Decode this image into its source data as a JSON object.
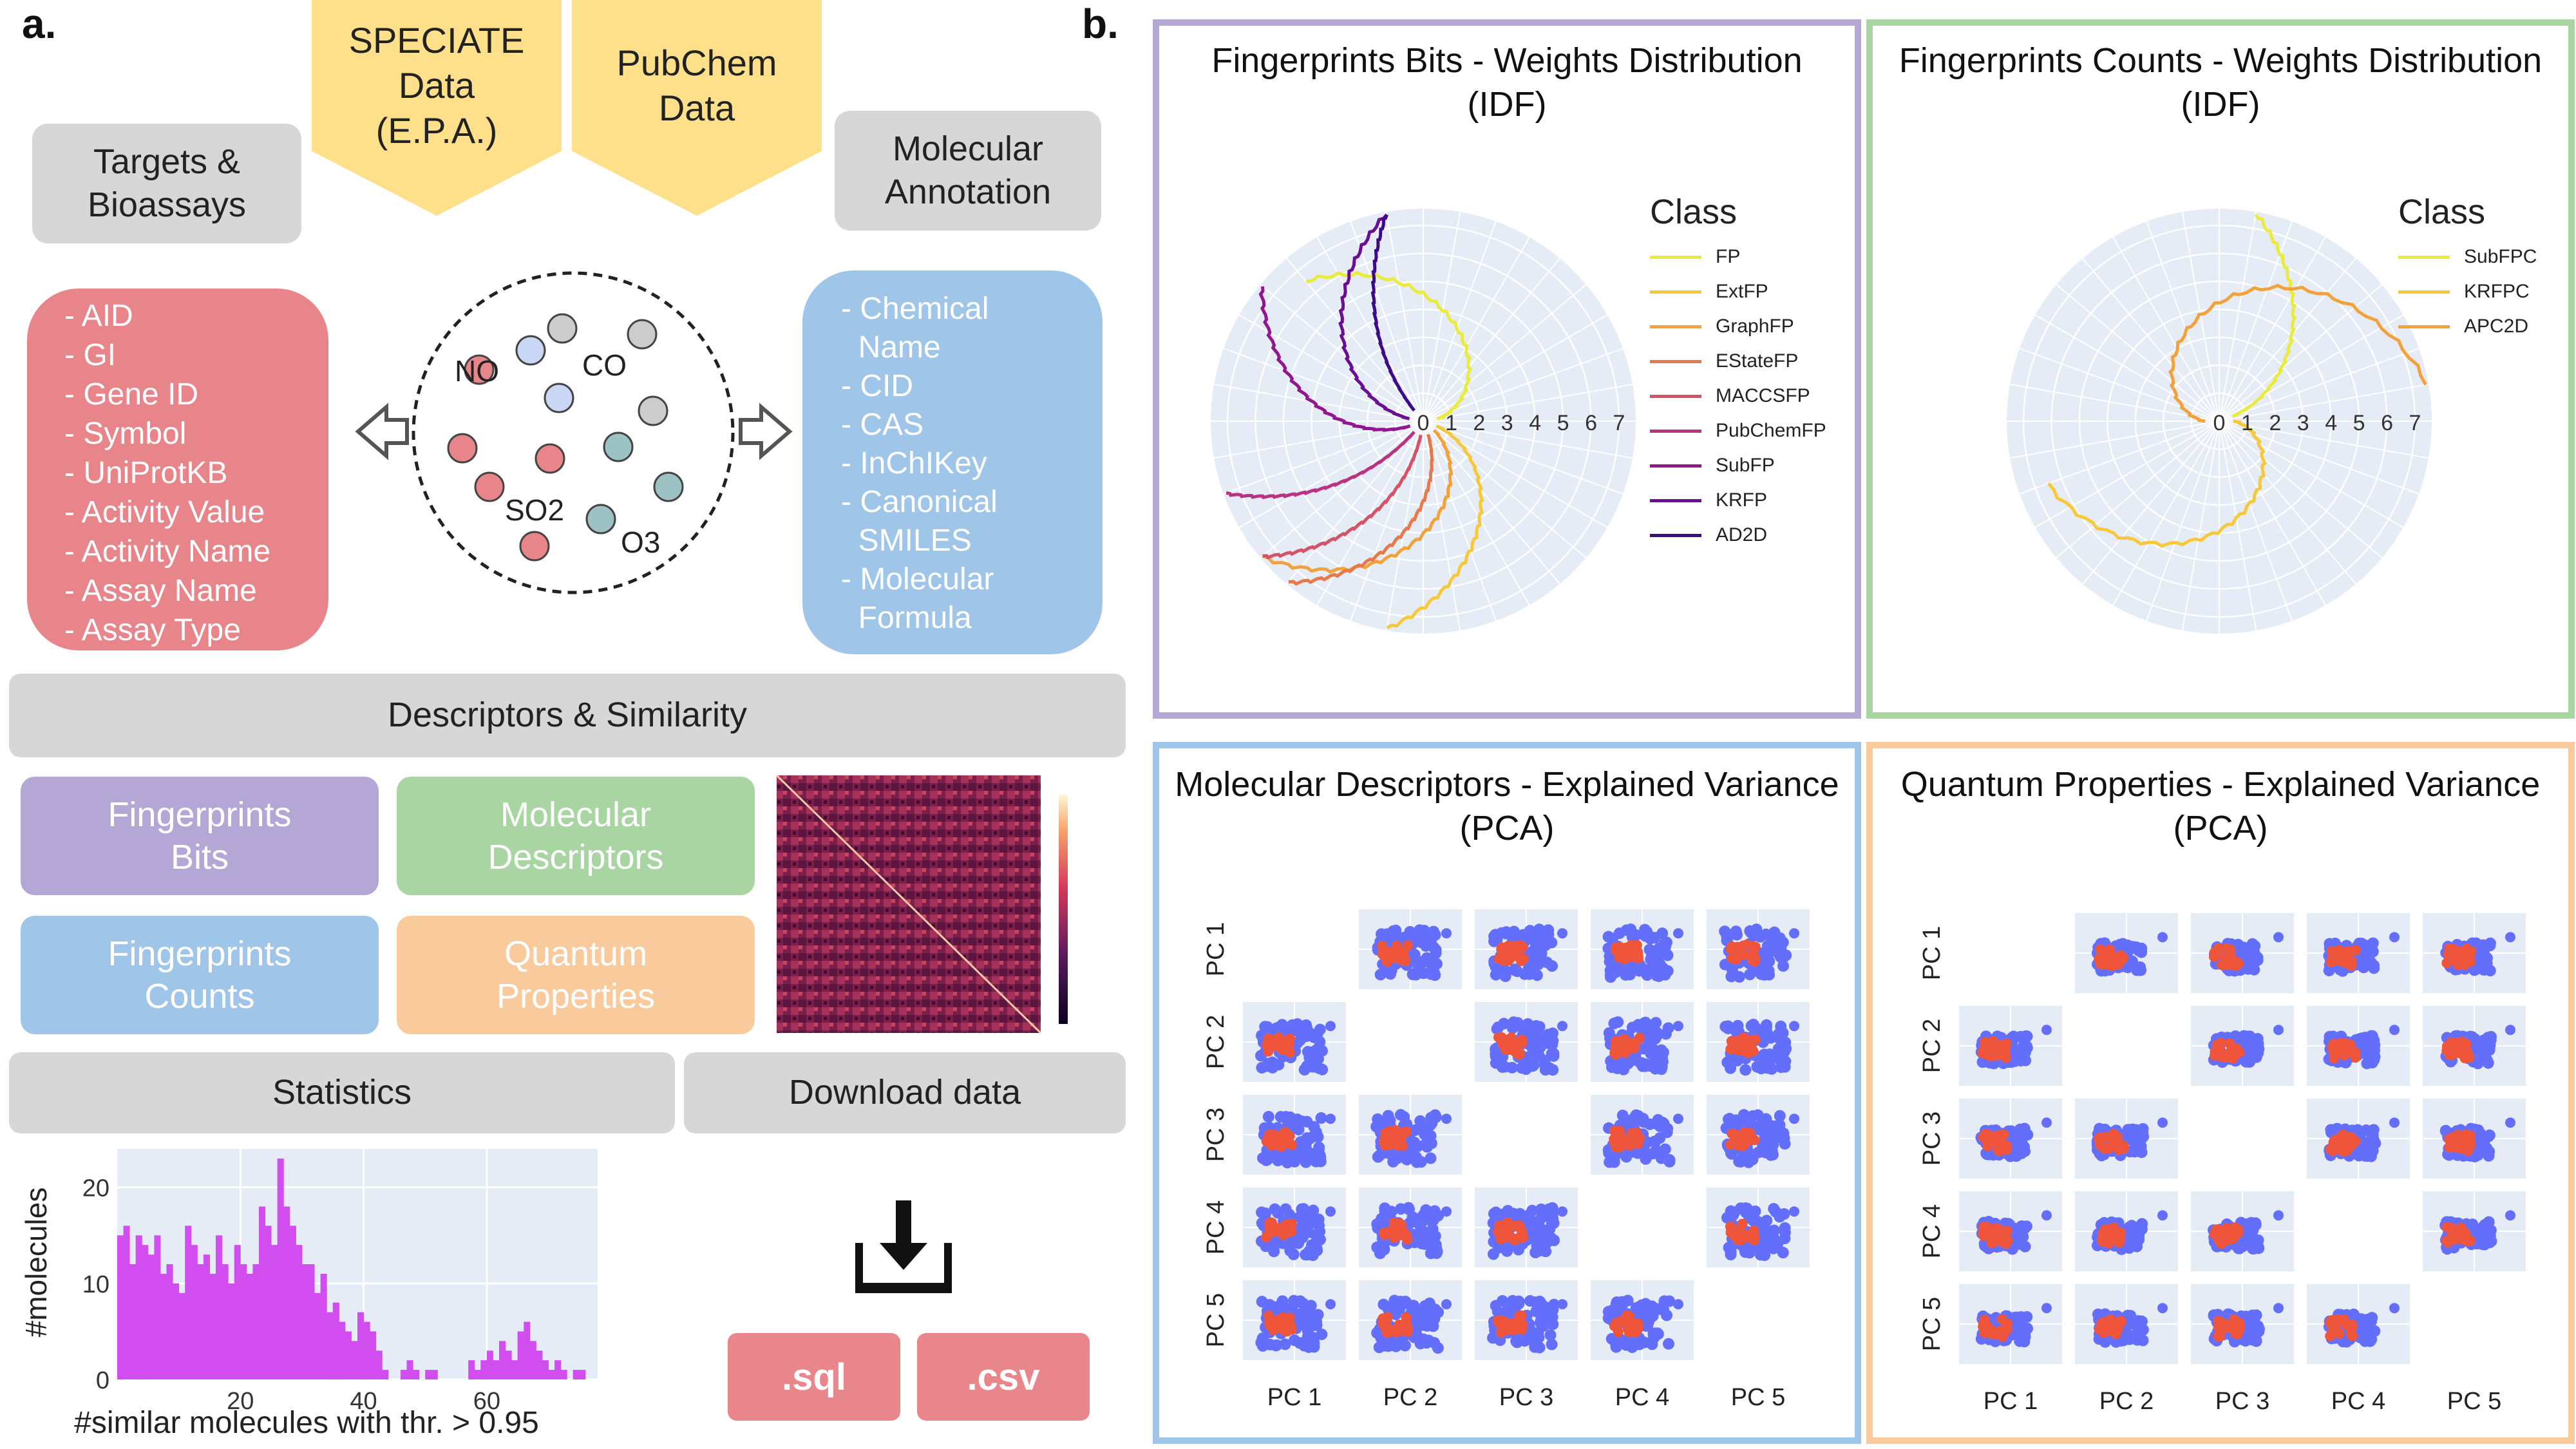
{
  "panel_a": {
    "letter": "a.",
    "sources": {
      "speciate": [
        "SPECIATE",
        "Data",
        "(E.P.A.)"
      ],
      "pubchem": [
        "PubChem",
        "Data"
      ]
    },
    "targets_title": [
      "Targets &",
      "Bioassays"
    ],
    "annotation_title": [
      "Molecular",
      "Annotation"
    ],
    "targets_list": [
      "- AID",
      "- GI",
      "- Gene ID",
      "- Symbol",
      "- UniProtKB",
      "- Activity Value",
      "- Activity Name",
      "- Assay Name",
      "- Assay Type"
    ],
    "annotation_list": [
      "- Chemical",
      "  Name",
      "- CID",
      "- CAS",
      "- InChIKey",
      "- Canonical",
      "  SMILES",
      "- Molecular",
      "  Formula"
    ],
    "molecules": [
      "NO",
      "CO",
      "SO2",
      "O3"
    ],
    "descriptors_title": "Descriptors & Similarity",
    "categories": {
      "fp_bits": [
        "Fingerprints",
        "Bits"
      ],
      "mol_desc": [
        "Molecular",
        "Descriptors"
      ],
      "fp_counts": [
        "Fingerprints",
        "Counts"
      ],
      "quantum": [
        "Quantum",
        "Properties"
      ]
    },
    "statistics_label": "Statistics",
    "download_label": "Download data",
    "download_buttons": [
      ".sql",
      ".csv"
    ],
    "icons": [
      "left-arrow-icon",
      "right-arrow-icon",
      "download-icon"
    ],
    "colors": {
      "targets": "#e8858a",
      "annotation": "#9fc5e8",
      "fp_bits": "#b4a7d6",
      "mol_desc": "#a8d5a2",
      "fp_counts": "#9fc5e8",
      "quantum": "#f9cb9c",
      "source": "#ffe08a",
      "gray": "#d7d7d7"
    }
  },
  "panel_b": {
    "letter": "b.",
    "polar_bits": {
      "title": [
        "Fingerprints Bits - Weights Distribution",
        "(IDF)"
      ],
      "legend_title": "Class",
      "classes": [
        "FP",
        "ExtFP",
        "GraphFP",
        "EStateFP",
        "MACCSFP",
        "PubChemFP",
        "SubFP",
        "KRFP",
        "AD2D"
      ],
      "class_colors": [
        "#e9ec3f",
        "#f7c83a",
        "#f3a13b",
        "#e67849",
        "#d35368",
        "#b93380",
        "#92178f",
        "#6a0e93",
        "#3d0a8a"
      ],
      "radial_ticks": [
        "0",
        "1",
        "2",
        "3",
        "4",
        "5",
        "6",
        "7"
      ]
    },
    "polar_counts": {
      "title": [
        "Fingerprints Counts - Weights Distribution",
        "(IDF)"
      ],
      "legend_title": "Class",
      "classes": [
        "SubFPC",
        "KRFPC",
        "APC2D"
      ],
      "class_colors": [
        "#e9ec3f",
        "#f7c83a",
        "#f3a13b"
      ],
      "radial_ticks": [
        "0",
        "1",
        "2",
        "3",
        "4",
        "5",
        "6",
        "7"
      ]
    },
    "pca_desc": {
      "title": [
        "Molecular Descriptors - Explained Variance",
        "(PCA)"
      ],
      "components": [
        "PC 1",
        "PC 2",
        "PC 3",
        "PC 4",
        "PC 5"
      ]
    },
    "pca_quantum": {
      "title": [
        "Quantum Properties - Explained Variance",
        "(PCA)"
      ],
      "components": [
        "PC 1",
        "PC 2",
        "PC 3",
        "PC 4",
        "PC 5"
      ]
    },
    "border_colors": {
      "polar_bits": "#b4a7d6",
      "polar_counts": "#a8d5a2",
      "pca_desc": "#9fc5e8",
      "pca_quantum": "#f9cb9c"
    }
  },
  "chart_data": {
    "type": "bar",
    "xlabel": "#similar molecules with thr. > 0.95",
    "ylabel": "#molecules",
    "xlim": [
      0,
      78
    ],
    "ylim": [
      0,
      24
    ],
    "x_ticks": [
      20,
      40,
      60
    ],
    "y_ticks": [
      0,
      10,
      20
    ],
    "x": [
      1,
      2,
      3,
      4,
      5,
      6,
      7,
      8,
      9,
      10,
      11,
      12,
      13,
      14,
      15,
      16,
      17,
      18,
      19,
      20,
      21,
      22,
      23,
      24,
      25,
      26,
      27,
      28,
      29,
      30,
      31,
      32,
      33,
      34,
      35,
      36,
      37,
      38,
      39,
      40,
      41,
      42,
      43,
      44,
      45,
      46,
      47,
      48,
      49,
      50,
      51,
      52,
      53,
      54,
      55,
      56,
      57,
      58,
      59,
      60,
      61,
      62,
      63,
      64,
      65,
      66,
      67,
      68,
      69,
      70,
      71,
      72,
      73,
      74,
      75,
      76
    ],
    "values": [
      15,
      16,
      12,
      15,
      14,
      13,
      15,
      11,
      12,
      10,
      9,
      16,
      14,
      12,
      13,
      11,
      15,
      12,
      10,
      14,
      12,
      11,
      12,
      18,
      16,
      14,
      23,
      18,
      16,
      14,
      12,
      12,
      9,
      11,
      7,
      8,
      6,
      5,
      4,
      7,
      6,
      5,
      3,
      1,
      0,
      0,
      1,
      2,
      1,
      0,
      1,
      1,
      0,
      0,
      0,
      0,
      0,
      2,
      1,
      2,
      3,
      2,
      4,
      3,
      2,
      5,
      6,
      4,
      3,
      2,
      1,
      2,
      1,
      0,
      1,
      1
    ],
    "bar_color": "#d24df0",
    "background": "#e5ecf6"
  }
}
